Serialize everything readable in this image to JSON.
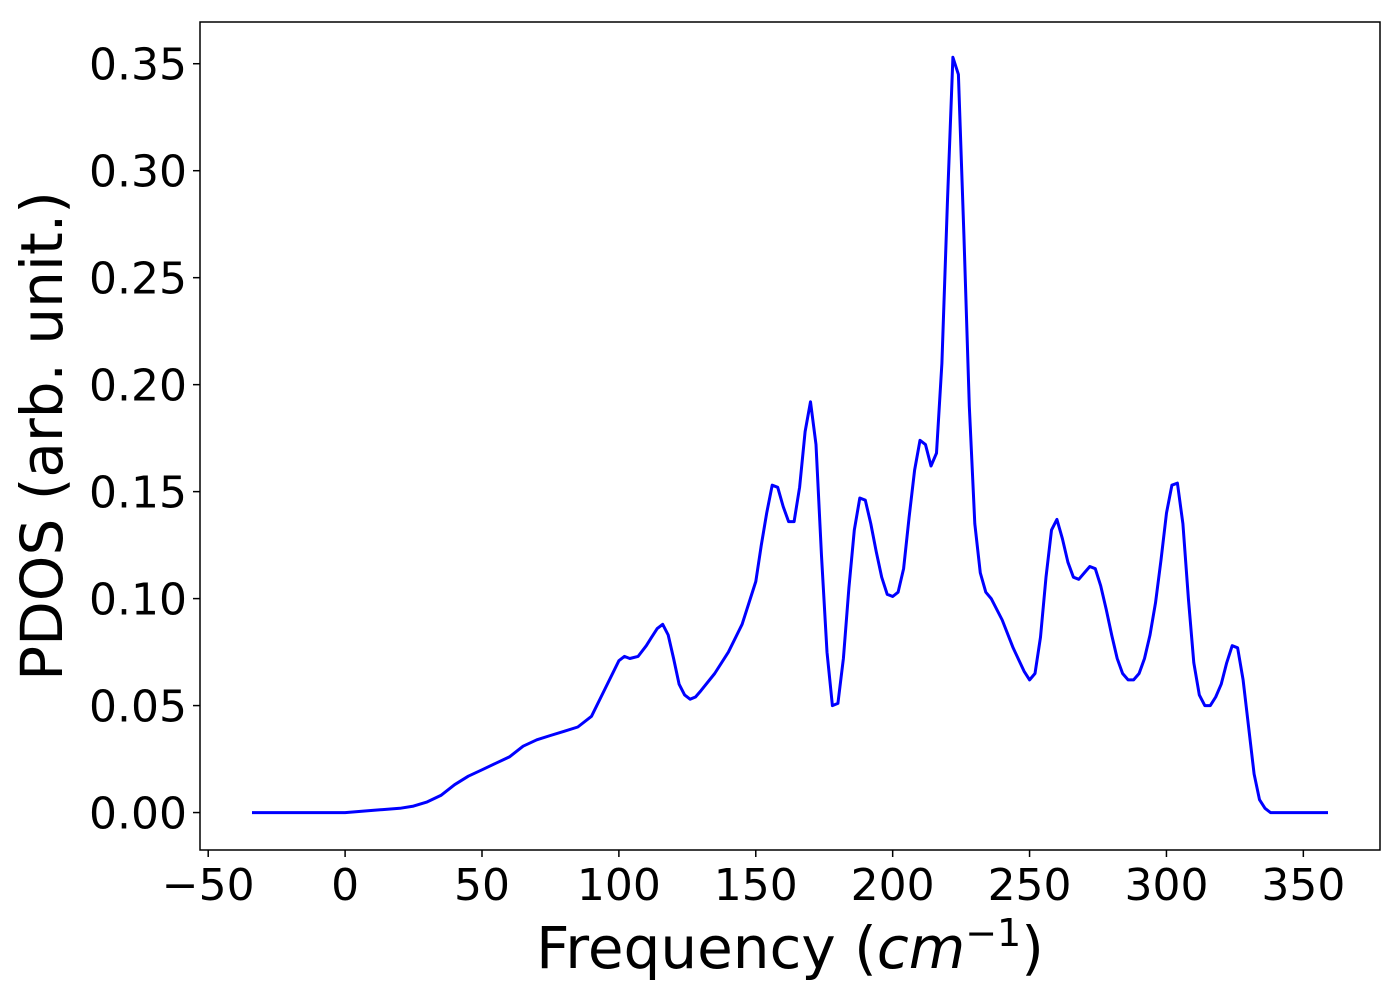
{
  "chart_data": {
    "type": "line",
    "title": "",
    "xlabel": "Frequency",
    "xlabel_unit_base": "cm",
    "xlabel_unit_exp": "−1",
    "ylabel": "PDOS (arb. unit.)",
    "xlim": [
      -53,
      378
    ],
    "ylim": [
      -0.0175,
      0.3695
    ],
    "xticks": [
      -50,
      0,
      50,
      100,
      150,
      200,
      250,
      300,
      350
    ],
    "xtick_labels": [
      "−50",
      "0",
      "50",
      "100",
      "150",
      "200",
      "250",
      "300",
      "350"
    ],
    "yticks": [
      0.0,
      0.05,
      0.1,
      0.15,
      0.2,
      0.25,
      0.3,
      0.35
    ],
    "ytick_labels": [
      "0.00",
      "0.05",
      "0.10",
      "0.15",
      "0.20",
      "0.25",
      "0.30",
      "0.35"
    ],
    "grid": false,
    "legend": "none",
    "series": [
      {
        "color": "#0000ff",
        "x": [
          -34,
          -20,
          0,
          10,
          20,
          25,
          30,
          35,
          40,
          45,
          50,
          55,
          60,
          65,
          70,
          75,
          80,
          85,
          90,
          95,
          100,
          102,
          104,
          107,
          110,
          112,
          114,
          116,
          118,
          120,
          122,
          124,
          126,
          128,
          130,
          135,
          140,
          145,
          150,
          152,
          154,
          156,
          158,
          160,
          162,
          164,
          166,
          168,
          170,
          172,
          174,
          176,
          178,
          180,
          182,
          184,
          186,
          188,
          190,
          192,
          194,
          196,
          198,
          200,
          202,
          204,
          206,
          208,
          210,
          212,
          214,
          216,
          218,
          220,
          222,
          224,
          226,
          228,
          230,
          232,
          234,
          236,
          240,
          244,
          248,
          250,
          252,
          254,
          256,
          258,
          260,
          262,
          264,
          266,
          268,
          270,
          272,
          274,
          276,
          278,
          280,
          282,
          284,
          286,
          288,
          290,
          292,
          294,
          296,
          298,
          300,
          302,
          304,
          306,
          308,
          310,
          312,
          314,
          316,
          318,
          320,
          322,
          324,
          326,
          328,
          330,
          332,
          334,
          336,
          338,
          345,
          359
        ],
        "y": [
          0.0,
          0.0,
          0.0,
          0.001,
          0.002,
          0.003,
          0.005,
          0.008,
          0.013,
          0.017,
          0.02,
          0.023,
          0.026,
          0.031,
          0.034,
          0.036,
          0.038,
          0.04,
          0.045,
          0.058,
          0.071,
          0.073,
          0.072,
          0.073,
          0.078,
          0.082,
          0.086,
          0.088,
          0.083,
          0.072,
          0.06,
          0.055,
          0.053,
          0.054,
          0.057,
          0.065,
          0.075,
          0.088,
          0.108,
          0.125,
          0.14,
          0.153,
          0.152,
          0.143,
          0.136,
          0.136,
          0.152,
          0.178,
          0.192,
          0.172,
          0.12,
          0.075,
          0.05,
          0.051,
          0.072,
          0.105,
          0.132,
          0.147,
          0.146,
          0.135,
          0.122,
          0.11,
          0.102,
          0.101,
          0.103,
          0.114,
          0.138,
          0.16,
          0.174,
          0.172,
          0.162,
          0.168,
          0.21,
          0.285,
          0.353,
          0.345,
          0.27,
          0.19,
          0.135,
          0.112,
          0.103,
          0.1,
          0.09,
          0.077,
          0.066,
          0.062,
          0.065,
          0.082,
          0.11,
          0.132,
          0.137,
          0.128,
          0.117,
          0.11,
          0.109,
          0.112,
          0.115,
          0.114,
          0.106,
          0.095,
          0.083,
          0.072,
          0.065,
          0.062,
          0.062,
          0.065,
          0.072,
          0.083,
          0.098,
          0.118,
          0.14,
          0.153,
          0.154,
          0.135,
          0.1,
          0.07,
          0.055,
          0.05,
          0.05,
          0.054,
          0.06,
          0.07,
          0.078,
          0.077,
          0.062,
          0.04,
          0.018,
          0.006,
          0.002,
          0.0,
          0.0,
          0.0
        ]
      }
    ]
  }
}
